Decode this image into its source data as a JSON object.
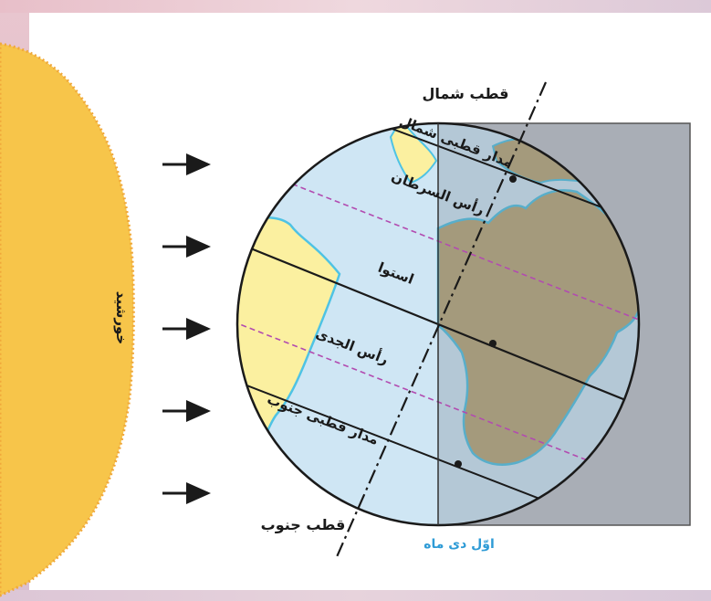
{
  "labels": {
    "north_pole": "قطب شمال",
    "south_pole": "قطب جنوب",
    "arctic_circle": "مدار قطبی شمال",
    "tropic_of_cancer": "رأس السرطان",
    "equator": "استوا",
    "tropic_of_capricorn": "رأس الجدی",
    "antarctic_circle": "مدار قطبی جنوب",
    "sun": "خورشید",
    "date": "اوّل دی ماه"
  },
  "colors": {
    "sun": "#f7c54a",
    "ocean": "#cfe6f4",
    "land_lit": "#fbf0a0",
    "land_dark": "#b9a778",
    "night": "#a9aeb6",
    "coast": "#4fc3e4",
    "tropic_line": "#b24bb0",
    "date_label": "#2e9bd6"
  },
  "icons": [
    "sun-ray-arrow-icon"
  ]
}
